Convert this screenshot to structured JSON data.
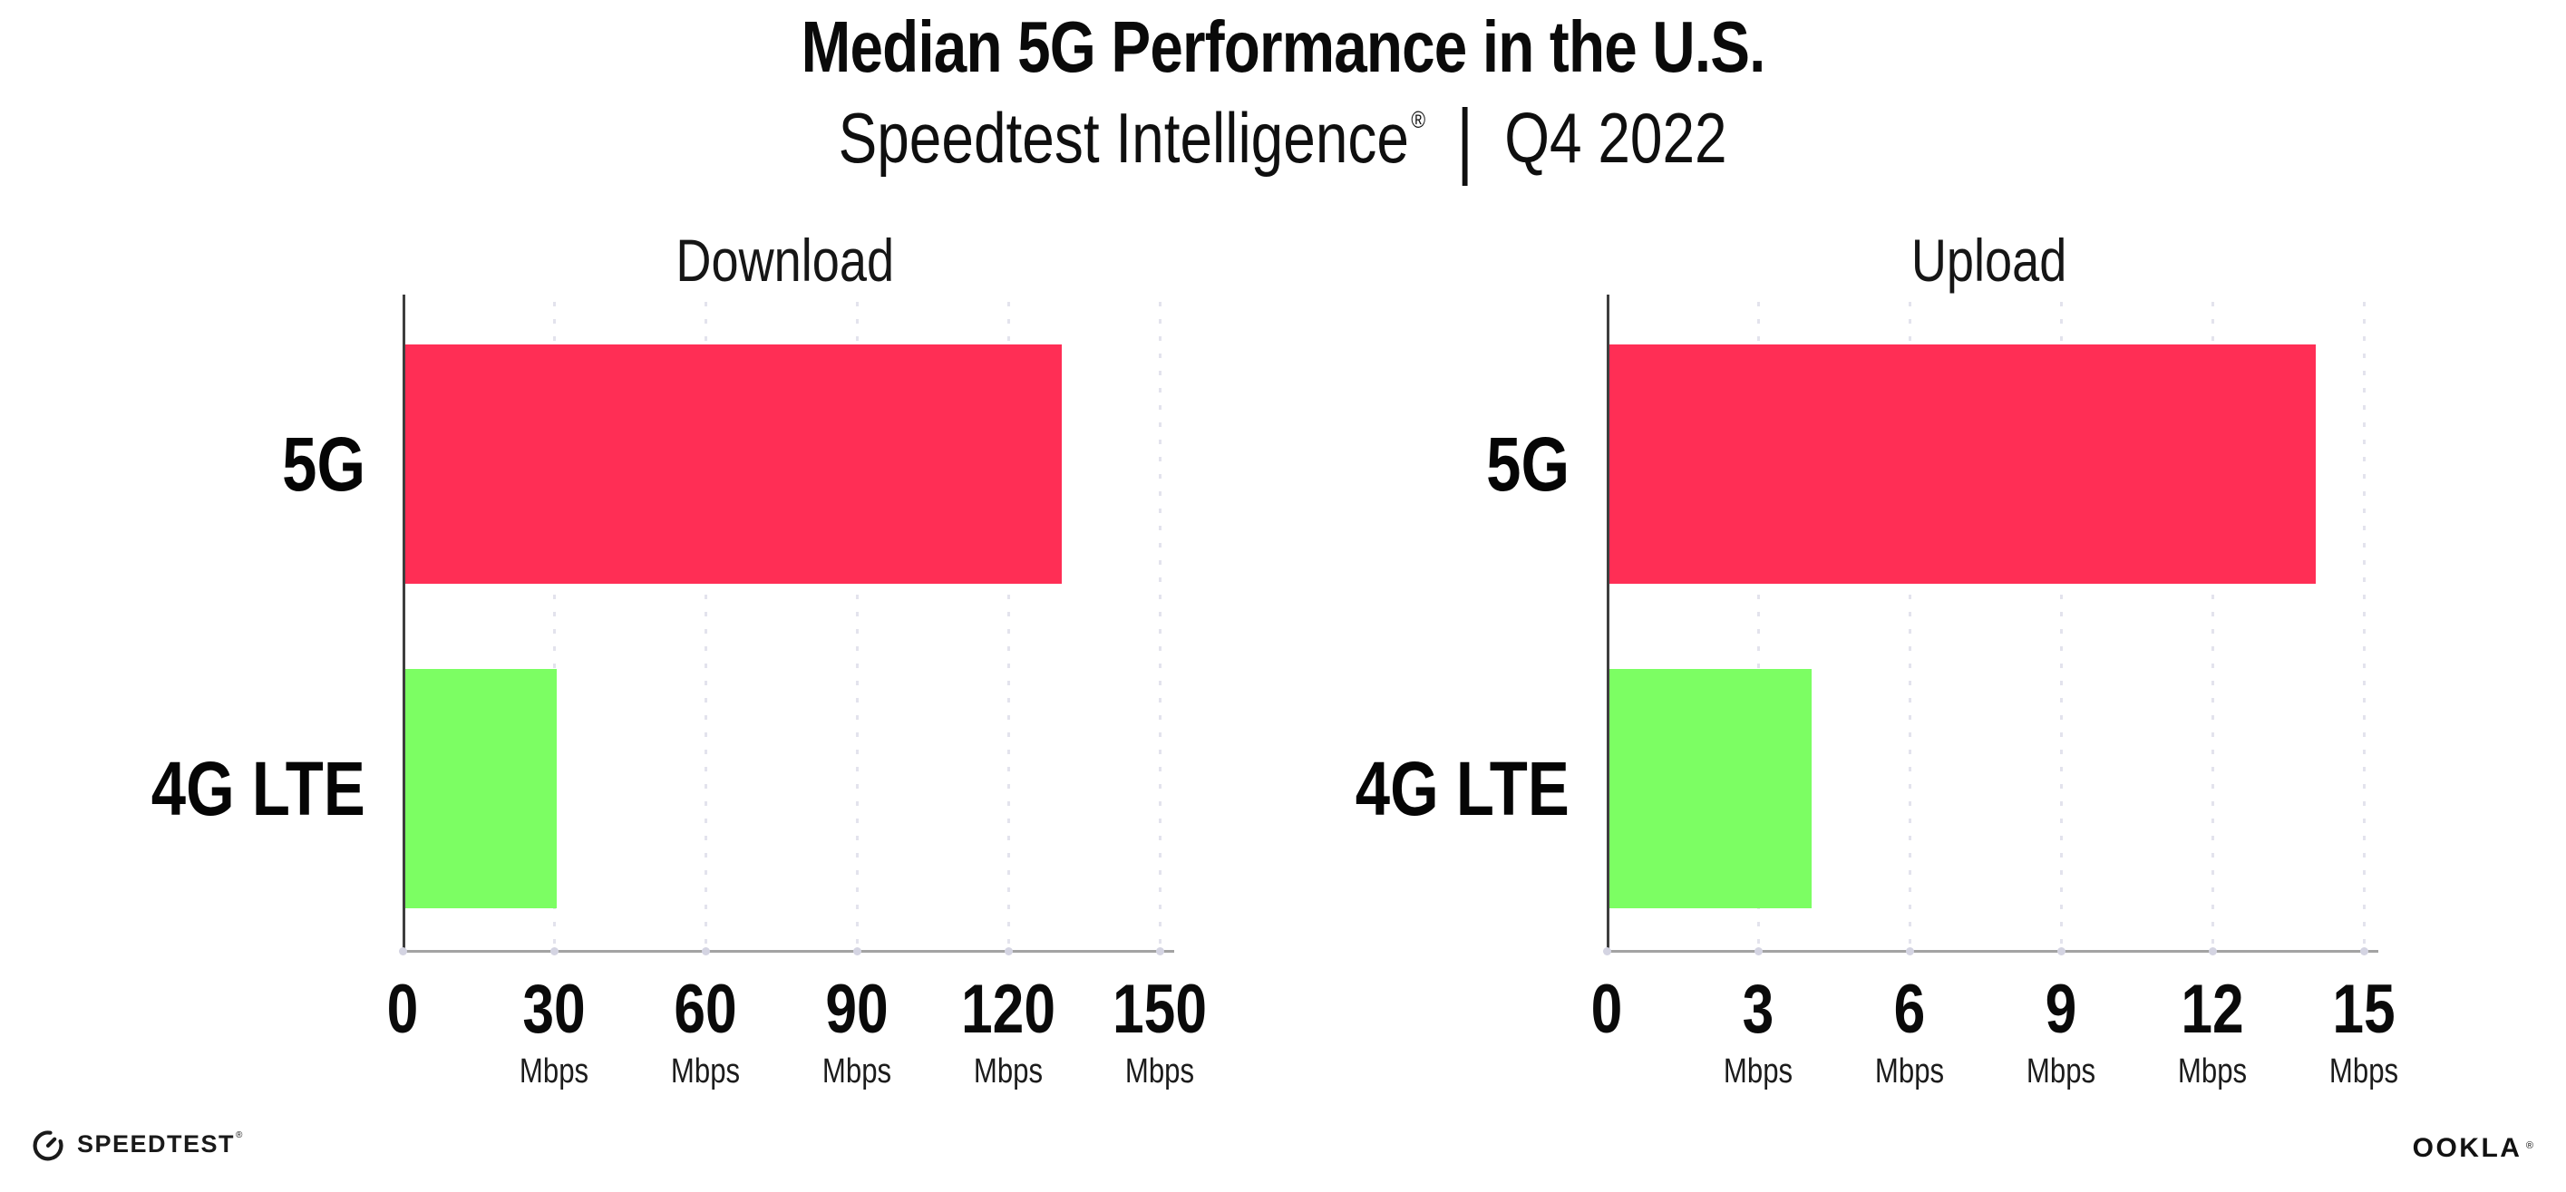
{
  "header": {
    "title": "Median 5G Performance in the U.S.",
    "subtitle": {
      "brand": "Speedtest Intelligence",
      "registered_mark": "®",
      "divider": "|",
      "period": "Q4 2022"
    }
  },
  "chart_data": [
    {
      "type": "bar",
      "orientation": "horizontal",
      "title": "Download",
      "categories": [
        "5G",
        "4G LTE"
      ],
      "values": [
        130,
        30
      ],
      "unit": "Mbps",
      "xlim": [
        0,
        150
      ],
      "xticks": [
        0,
        30,
        60,
        90,
        120,
        150
      ],
      "grid": "vertical dotted",
      "legend": "none",
      "bar_colors": [
        "#FF2E55",
        "#7CFE63"
      ]
    },
    {
      "type": "bar",
      "orientation": "horizontal",
      "title": "Upload",
      "categories": [
        "5G",
        "4G LTE"
      ],
      "values": [
        14,
        4
      ],
      "unit": "Mbps",
      "xlim": [
        0,
        15
      ],
      "xticks": [
        0,
        3,
        6,
        9,
        12,
        15
      ],
      "grid": "vertical dotted",
      "legend": "none",
      "bar_colors": [
        "#FF2E55",
        "#7CFE63"
      ]
    }
  ],
  "footer": {
    "speedtest_wordmark": "SPEEDTEST",
    "speedtest_mark": "®",
    "ookla_wordmark": "OOKLA",
    "ookla_mark": "®"
  },
  "colors": {
    "bar_5g_pink": "#FF2E55",
    "bar_4g_green": "#7CFE63",
    "gridline": "#E3E3ED",
    "x_axis": "#A3A3A3",
    "y_axis": "#3E3E3E",
    "tick_dot": "#D4D4E2",
    "text": "#111111"
  }
}
